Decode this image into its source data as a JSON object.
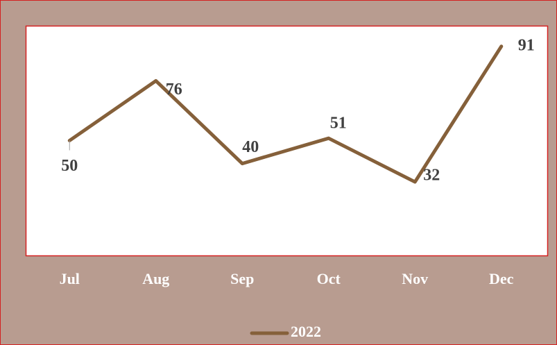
{
  "chart_data": {
    "type": "line",
    "categories": [
      "Jul",
      "Aug",
      "Sep",
      "Oct",
      "Nov",
      "Dec"
    ],
    "series": [
      {
        "name": "2022",
        "color": "#85603a",
        "values": [
          50,
          76,
          40,
          51,
          32,
          91
        ]
      }
    ],
    "ylim": [
      0,
      100
    ],
    "legend": "bottom"
  }
}
